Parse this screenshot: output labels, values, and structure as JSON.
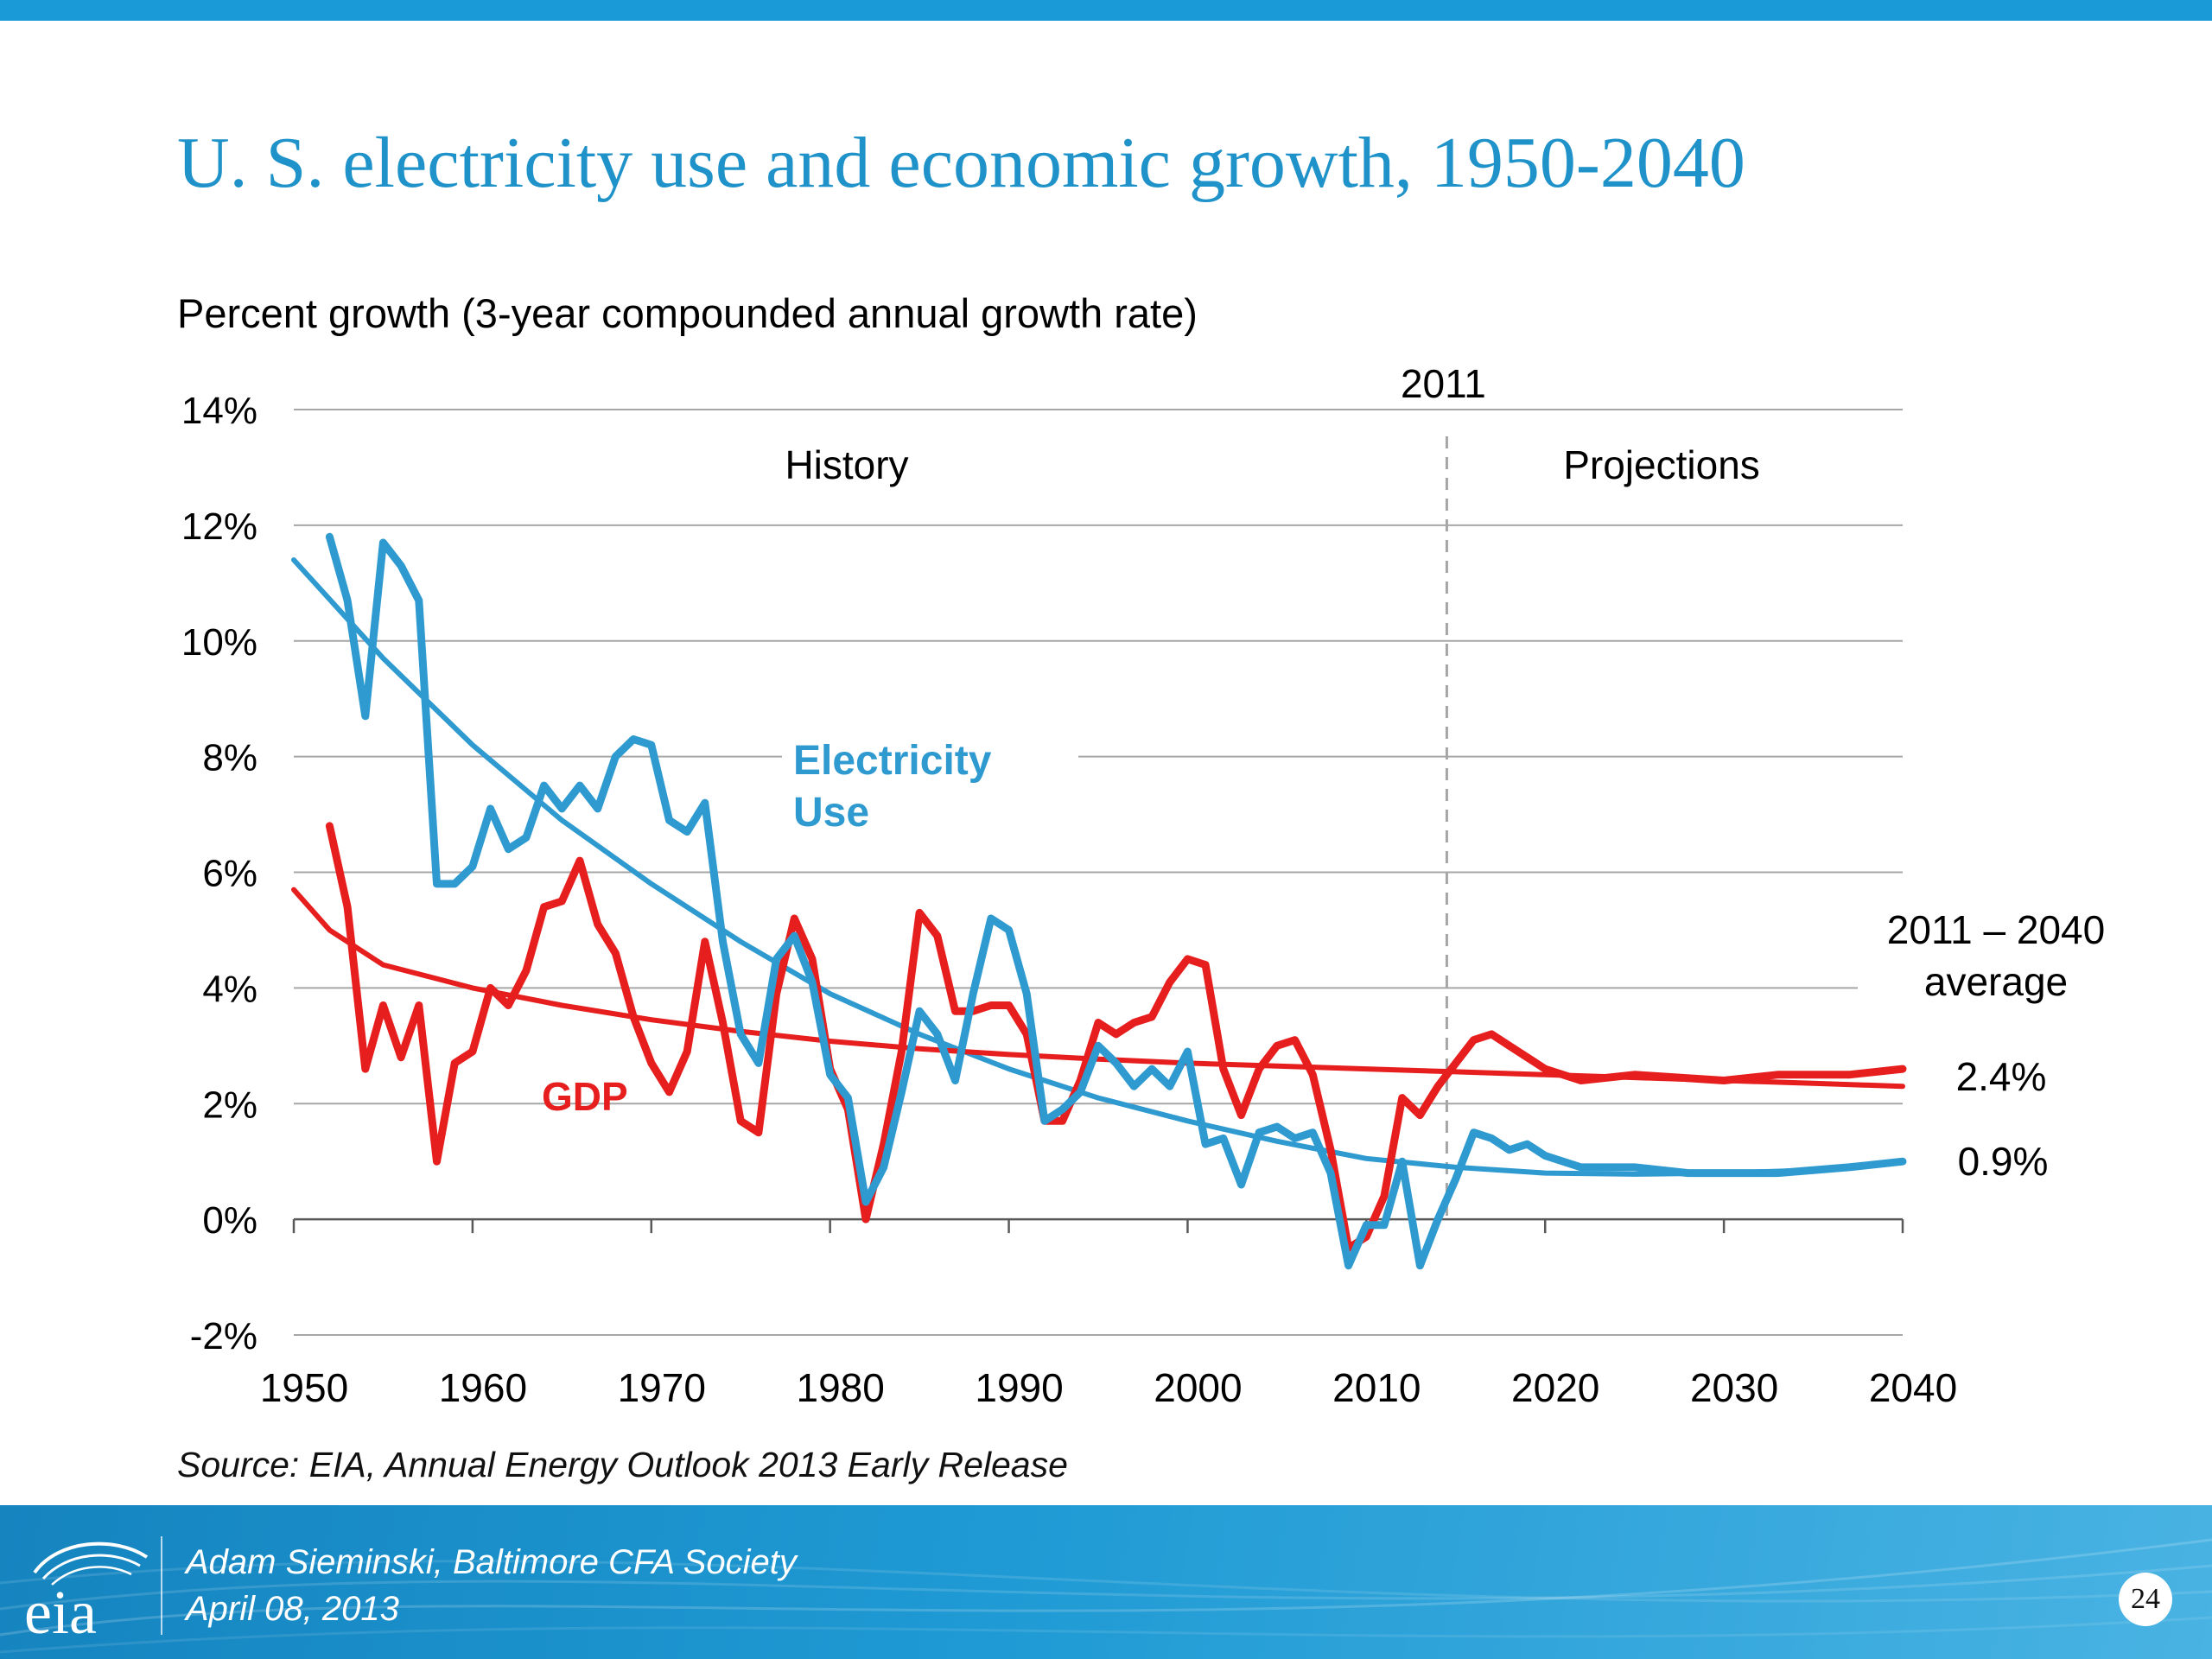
{
  "slide": {
    "title": "U. S. electricity use and economic growth, 1950-2040",
    "subtitle": "Percent growth (3-year compounded annual growth rate)",
    "source": "Source: EIA, Annual Energy Outlook 2013 Early Release",
    "footer_line1": "Adam Sieminski, Baltimore CFA Society",
    "footer_line2": "April 08, 2013",
    "page_number": "24",
    "logo_text": "eia"
  },
  "colors": {
    "electricity": "#2e9ad0",
    "gdp": "#e61e1e",
    "title": "#1f93c9",
    "gridline": "#a6a6a6",
    "footer": "#1a8fcc"
  },
  "chart_data": {
    "type": "line",
    "xlim": [
      1950,
      2040
    ],
    "ylim": [
      -2,
      14
    ],
    "x_ticks": [
      1950,
      1960,
      1970,
      1980,
      1990,
      2000,
      2010,
      2020,
      2030,
      2040
    ],
    "x_tick_labels": [
      "1950",
      "1960",
      "1970",
      "1980",
      "1990",
      "2000",
      "2010",
      "2020",
      "2030",
      "2040"
    ],
    "y_ticks": [
      -2,
      0,
      2,
      4,
      6,
      8,
      10,
      12,
      14
    ],
    "y_tick_labels": [
      "-2%",
      "0%",
      "2%",
      "4%",
      "6%",
      "8%",
      "10%",
      "12%",
      "14%"
    ],
    "grid": true,
    "divider_year": 2014.5,
    "divider_label": "2011",
    "region_labels": [
      "History",
      "Projections"
    ],
    "series": [
      {
        "name": "Electricity Use",
        "label": "Electricity\nUse",
        "color": "#2e9ad0",
        "x": [
          1952,
          1953,
          1954,
          1955,
          1956,
          1957,
          1958,
          1959,
          1960,
          1961,
          1962,
          1963,
          1964,
          1965,
          1966,
          1967,
          1968,
          1969,
          1970,
          1971,
          1972,
          1973,
          1974,
          1975,
          1976,
          1977,
          1978,
          1979,
          1980,
          1981,
          1982,
          1983,
          1984,
          1985,
          1986,
          1987,
          1988,
          1989,
          1990,
          1991,
          1992,
          1993,
          1994,
          1995,
          1996,
          1997,
          1998,
          1999,
          2000,
          2001,
          2002,
          2003,
          2004,
          2005,
          2006,
          2007,
          2008,
          2009,
          2010,
          2011,
          2012,
          2013,
          2014,
          2015,
          2016,
          2017,
          2018,
          2019,
          2020,
          2022,
          2025,
          2028,
          2030,
          2033,
          2037,
          2040
        ],
        "y": [
          11.8,
          10.7,
          8.7,
          11.7,
          11.3,
          10.7,
          5.8,
          5.8,
          6.1,
          7.1,
          6.4,
          6.6,
          7.5,
          7.1,
          7.5,
          7.1,
          8.0,
          8.3,
          8.2,
          6.9,
          6.7,
          7.2,
          4.8,
          3.2,
          2.7,
          4.5,
          4.9,
          4.1,
          2.5,
          2.1,
          0.3,
          0.9,
          2.2,
          3.6,
          3.2,
          2.4,
          3.9,
          5.2,
          5.0,
          3.9,
          1.7,
          1.9,
          2.2,
          3.0,
          2.7,
          2.3,
          2.6,
          2.3,
          2.9,
          1.3,
          1.4,
          0.6,
          1.5,
          1.6,
          1.4,
          1.5,
          0.8,
          -0.8,
          -0.1,
          -0.1,
          1.0,
          -0.8,
          0.0,
          0.7,
          1.5,
          1.4,
          1.2,
          1.3,
          1.1,
          0.9,
          0.9,
          0.8,
          0.8,
          0.8,
          0.9,
          1.0
        ]
      },
      {
        "name": "GDP",
        "label": "GDP",
        "color": "#e61e1e",
        "x": [
          1952,
          1953,
          1954,
          1955,
          1956,
          1957,
          1958,
          1959,
          1960,
          1961,
          1962,
          1963,
          1964,
          1965,
          1966,
          1967,
          1968,
          1969,
          1970,
          1971,
          1972,
          1973,
          1974,
          1975,
          1976,
          1977,
          1978,
          1979,
          1980,
          1981,
          1982,
          1983,
          1984,
          1985,
          1986,
          1987,
          1988,
          1989,
          1990,
          1991,
          1992,
          1993,
          1994,
          1995,
          1996,
          1997,
          1998,
          1999,
          2000,
          2001,
          2002,
          2003,
          2004,
          2005,
          2006,
          2007,
          2008,
          2009,
          2010,
          2011,
          2012,
          2013,
          2014,
          2015,
          2016,
          2017,
          2018,
          2019,
          2020,
          2022,
          2025,
          2030,
          2033,
          2037,
          2040
        ],
        "y": [
          6.8,
          5.4,
          2.6,
          3.7,
          2.8,
          3.7,
          1.0,
          2.7,
          2.9,
          4.0,
          3.7,
          4.3,
          5.4,
          5.5,
          6.2,
          5.1,
          4.6,
          3.5,
          2.7,
          2.2,
          2.9,
          4.8,
          3.4,
          1.7,
          1.5,
          3.9,
          5.2,
          4.5,
          2.6,
          1.9,
          0.0,
          1.3,
          2.9,
          5.3,
          4.9,
          3.6,
          3.6,
          3.7,
          3.7,
          3.2,
          1.7,
          1.7,
          2.4,
          3.4,
          3.2,
          3.4,
          3.5,
          4.1,
          4.5,
          4.4,
          2.6,
          1.8,
          2.6,
          3.0,
          3.1,
          2.5,
          1.2,
          -0.5,
          -0.3,
          0.4,
          2.1,
          1.8,
          2.3,
          2.7,
          3.1,
          3.2,
          3.0,
          2.8,
          2.6,
          2.4,
          2.5,
          2.4,
          2.5,
          2.5,
          2.6
        ]
      },
      {
        "name": "Electricity Use trend",
        "color": "#2e9ad0",
        "x": [
          1950,
          1955,
          1960,
          1965,
          1970,
          1975,
          1980,
          1985,
          1990,
          1995,
          2000,
          2005,
          2010,
          2015,
          2020,
          2025,
          2030,
          2035,
          2040
        ],
        "y": [
          11.4,
          9.7,
          8.2,
          6.9,
          5.8,
          4.8,
          3.9,
          3.2,
          2.6,
          2.1,
          1.7,
          1.35,
          1.05,
          0.9,
          0.8,
          0.78,
          0.8,
          0.85,
          0.98
        ]
      },
      {
        "name": "GDP trend",
        "color": "#e61e1e",
        "x": [
          1950,
          1952,
          1955,
          1960,
          1965,
          1970,
          1975,
          1980,
          1985,
          1990,
          1995,
          2000,
          2005,
          2010,
          2015,
          2020,
          2025,
          2030,
          2035,
          2040
        ],
        "y": [
          5.7,
          5.0,
          4.4,
          4.0,
          3.7,
          3.45,
          3.25,
          3.08,
          2.95,
          2.85,
          2.77,
          2.7,
          2.65,
          2.6,
          2.55,
          2.5,
          2.45,
          2.4,
          2.35,
          2.3
        ]
      }
    ],
    "annotations": [
      {
        "text": "2011 – 2040",
        "role": "avg_title_1"
      },
      {
        "text": "average",
        "role": "avg_title_2"
      },
      {
        "text": "2.4%",
        "role": "gdp_avg"
      },
      {
        "text": "0.9%",
        "role": "elec_avg"
      }
    ]
  }
}
